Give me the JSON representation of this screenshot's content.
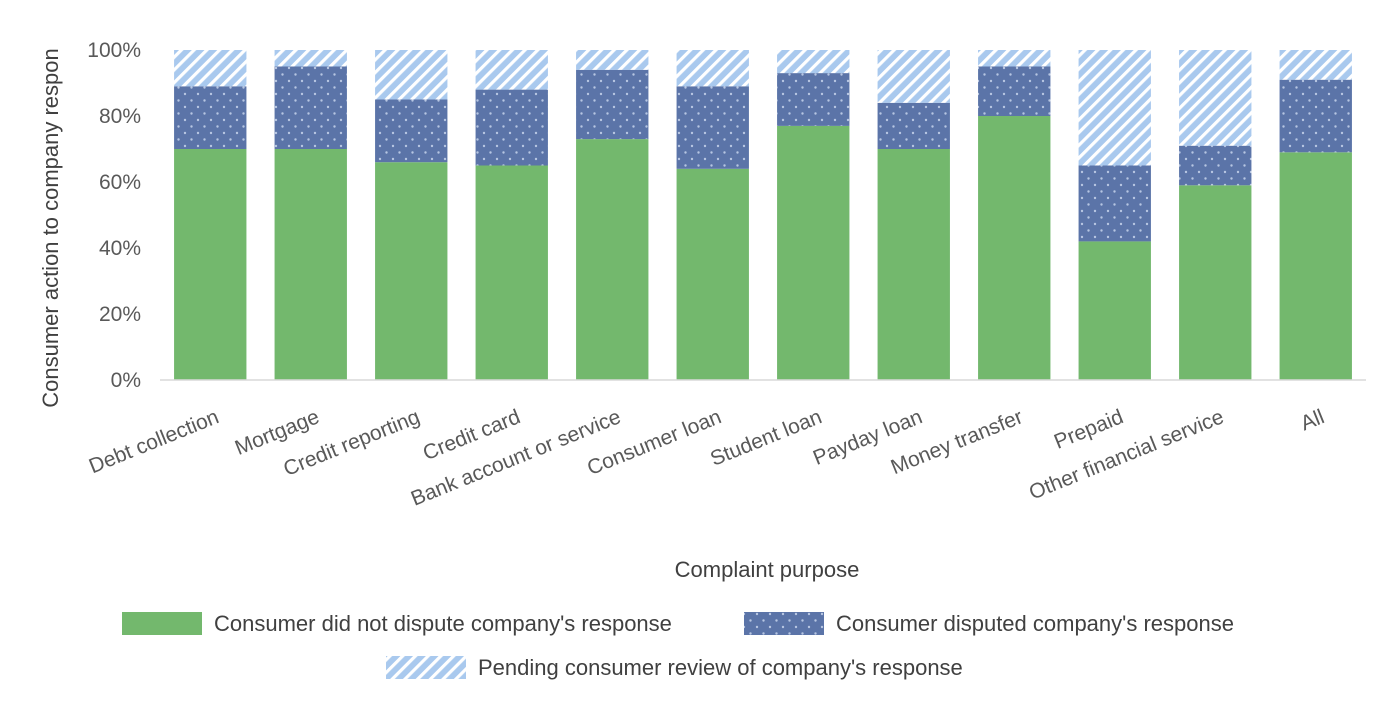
{
  "chart_data": {
    "type": "bar",
    "stacked": true,
    "percent_stacked": true,
    "title": "",
    "xlabel": "Complaint purpose",
    "ylabel": "Consumer action to company respon",
    "ylim": [
      0,
      100
    ],
    "yticks": [
      "0%",
      "20%",
      "40%",
      "60%",
      "80%",
      "100%"
    ],
    "ytick_values": [
      0,
      20,
      40,
      60,
      80,
      100
    ],
    "grid": false,
    "legend_position": "bottom",
    "categories": [
      "Debt collection",
      "Mortgage",
      "Credit reporting",
      "Credit card",
      "Bank account or service",
      "Consumer loan",
      "Student loan",
      "Payday loan",
      "Money transfer",
      "Prepaid",
      "Other financial service",
      "All"
    ],
    "series": [
      {
        "name": "Consumer did not dispute company's response",
        "color": "#73b86d",
        "pattern": "solid",
        "values": [
          70,
          70,
          66,
          65,
          73,
          64,
          77,
          70,
          80,
          42,
          59,
          69
        ]
      },
      {
        "name": "Consumer disputed company's response",
        "color": "#5b74a8",
        "pattern": "dots",
        "values": [
          19,
          25,
          19,
          23,
          21,
          25,
          16,
          14,
          15,
          23,
          12,
          22
        ]
      },
      {
        "name": "Pending consumer review of company's response",
        "color": "#a9c9ee",
        "pattern": "diagonal-stripes",
        "values": [
          11,
          5,
          15,
          12,
          6,
          11,
          7,
          16,
          5,
          35,
          29,
          9
        ]
      }
    ]
  }
}
